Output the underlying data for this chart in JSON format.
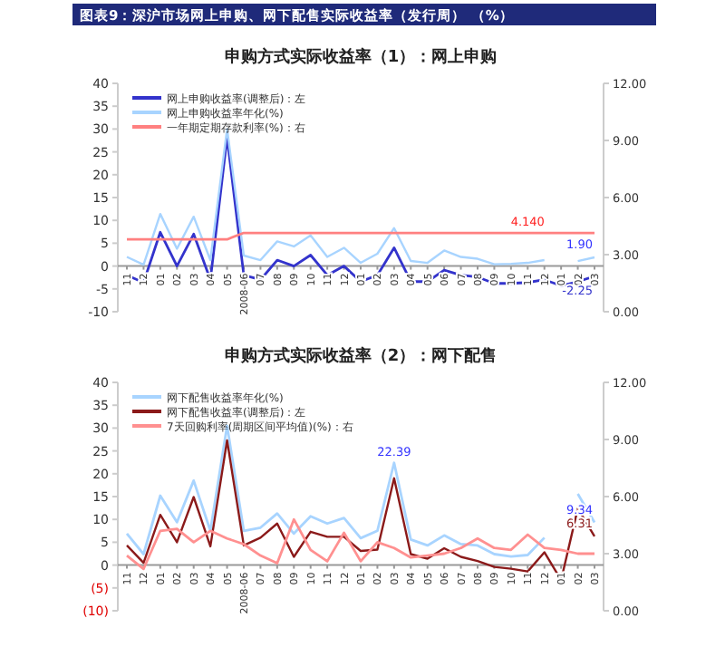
{
  "chart_data": [
    {
      "type": "line",
      "title": "申购方式实际收益率（1）：网上申购",
      "annotations": [
        "图表9：深沪市场网上申购、网下配售实际收益率（发行周）     （%）"
      ],
      "categories": [
        "11",
        "12",
        "01",
        "02",
        "03",
        "04",
        "05",
        "2008-06",
        "07",
        "08",
        "09",
        "10",
        "11",
        "12",
        "01",
        "02",
        "03",
        "04",
        "05",
        "06",
        "07",
        "08",
        "09",
        "10",
        "11",
        "12",
        "01",
        "02",
        "03"
      ],
      "ylim": [
        -10,
        40
      ],
      "yticks": [
        -10,
        -5,
        0,
        5,
        10,
        15,
        20,
        25,
        30,
        35,
        40
      ],
      "y2lim": [
        0,
        12
      ],
      "y2ticks": [
        {
          "value": 0,
          "label": "0.00"
        },
        {
          "value": 3,
          "label": "3.00"
        },
        {
          "value": 6,
          "label": "6.00"
        },
        {
          "value": 9,
          "label": "9.00"
        },
        {
          "value": 12,
          "label": "12.00"
        }
      ],
      "legend": "top left",
      "grid": false,
      "series": [
        {
          "name": "网上申购收益率(调整后)：左",
          "color": "#3333cc",
          "values": [
            -2,
            -3.6,
            7.4,
            0,
            7,
            -3,
            28.2,
            -2,
            -3,
            1.3,
            0,
            2.4,
            -2,
            0,
            -3.4,
            -2,
            4,
            -3.4,
            -3.4,
            -0.9,
            -2,
            -2.4,
            -3.8,
            -3.8,
            -3.6,
            -3,
            -4.3,
            -3.4,
            -2.25
          ],
          "value_labels": [
            null,
            null,
            null,
            null,
            null,
            null,
            null,
            null,
            null,
            null,
            null,
            null,
            null,
            null,
            null,
            null,
            null,
            null,
            null,
            null,
            null,
            null,
            null,
            null,
            null,
            null,
            null,
            null,
            "-2.25"
          ]
        },
        {
          "name": "网上申购收益率年化(%)",
          "color": "#a8d4ff",
          "values": [
            2,
            0.3,
            11.4,
            3.8,
            10.8,
            1.3,
            30,
            2.3,
            1.3,
            5.4,
            4.3,
            6.7,
            2,
            4,
            0.7,
            2.7,
            8.3,
            1.1,
            0.7,
            3.4,
            2,
            1.6,
            0.4,
            0.5,
            0.7,
            1.3,
            null,
            1.1,
            1.9
          ],
          "value_labels": [
            null,
            null,
            null,
            null,
            null,
            null,
            null,
            null,
            null,
            null,
            null,
            null,
            null,
            null,
            null,
            null,
            null,
            null,
            null,
            null,
            null,
            null,
            null,
            null,
            null,
            null,
            null,
            null,
            "1.90"
          ]
        },
        {
          "name": "一年期定期存款利率(%)：右",
          "color": "#ff8080",
          "axis": "y2",
          "values": [
            3.8,
            3.8,
            3.8,
            3.8,
            3.8,
            3.8,
            3.8,
            4.14,
            4.14,
            4.14,
            4.14,
            4.14,
            4.14,
            4.14,
            4.14,
            4.14,
            4.14,
            4.14,
            4.14,
            4.14,
            4.14,
            4.14,
            4.14,
            4.14,
            4.14,
            4.14,
            4.14,
            4.14,
            4.14
          ],
          "value_labels": [
            null,
            null,
            null,
            null,
            null,
            null,
            null,
            null,
            null,
            null,
            null,
            null,
            null,
            null,
            null,
            null,
            null,
            null,
            null,
            null,
            null,
            null,
            null,
            null,
            "4.140",
            null,
            null,
            null,
            null
          ]
        }
      ]
    },
    {
      "type": "line",
      "title": "申购方式实际收益率（2）：网下配售",
      "categories": [
        "11",
        "12",
        "01",
        "02",
        "03",
        "04",
        "05",
        "2008-06",
        "07",
        "08",
        "09",
        "10",
        "11",
        "12",
        "01",
        "02",
        "03",
        "04",
        "05",
        "06",
        "07",
        "08",
        "09",
        "10",
        "11",
        "12",
        "01",
        "02",
        "03"
      ],
      "ylim": [
        -10,
        40
      ],
      "yticks": [
        {
          "value": -10,
          "label": "(10)"
        },
        {
          "value": -5,
          "label": "(5)"
        },
        0,
        5,
        10,
        15,
        20,
        25,
        30,
        35,
        40
      ],
      "y2lim": [
        0,
        12
      ],
      "y2ticks": [
        {
          "value": 0,
          "label": "0.00"
        },
        {
          "value": 3,
          "label": "3.00"
        },
        {
          "value": 6,
          "label": "6.00"
        },
        {
          "value": 9,
          "label": "9.00"
        },
        {
          "value": 12,
          "label": "12.00"
        }
      ],
      "legend": "top left",
      "grid": false,
      "series": [
        {
          "name": "网下配售收益率年化(%)",
          "color": "#a8d4ff",
          "values": [
            6.9,
            2.4,
            15.2,
            9.4,
            18.5,
            7.5,
            30.5,
            7.5,
            8.2,
            11.3,
            6.9,
            10.7,
            9.1,
            10.3,
            5.9,
            7.5,
            22.39,
            5.6,
            4.3,
            6.5,
            4.6,
            4.3,
            2.4,
            1.9,
            2.2,
            6,
            null,
            15.6,
            9.34
          ],
          "value_labels": [
            null,
            null,
            null,
            null,
            null,
            null,
            null,
            null,
            null,
            null,
            null,
            null,
            null,
            null,
            null,
            null,
            "22.39",
            null,
            null,
            null,
            null,
            null,
            null,
            null,
            null,
            null,
            null,
            null,
            "9.34"
          ]
        },
        {
          "name": "网下配售收益率(调整后)：左",
          "color": "#8b1a1a",
          "values": [
            4.3,
            0.5,
            11,
            5,
            14.9,
            4.1,
            27.3,
            4.3,
            6,
            9.1,
            1.8,
            7.3,
            6.2,
            6.2,
            3.1,
            3.4,
            19,
            2.4,
            1.4,
            3.7,
            1.8,
            0.9,
            -0.4,
            -0.8,
            -1.4,
            2.8,
            -3.3,
            12.4,
            6.31
          ],
          "value_labels": [
            null,
            null,
            null,
            null,
            null,
            null,
            null,
            null,
            null,
            null,
            null,
            null,
            null,
            null,
            null,
            null,
            null,
            null,
            null,
            null,
            null,
            null,
            null,
            null,
            null,
            null,
            null,
            null,
            "6.31"
          ]
        },
        {
          "name": "7天回购利率(周期区间平均值)(%)：右",
          "color": "#ff9090",
          "axis": "y2",
          "values": [
            2.9,
            2.2,
            4.2,
            4.3,
            3.6,
            4.2,
            3.8,
            3.5,
            2.9,
            2.5,
            4.8,
            3.2,
            2.6,
            4.1,
            2.6,
            3.6,
            3.3,
            2.8,
            2.9,
            3.0,
            3.3,
            3.8,
            3.3,
            3.2,
            4.0,
            3.3,
            3.2,
            3.0,
            3.0
          ]
        }
      ]
    }
  ]
}
